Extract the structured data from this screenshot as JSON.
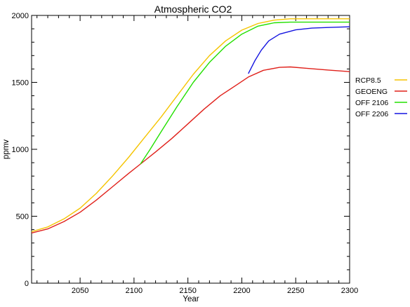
{
  "chart_data": {
    "type": "line",
    "title": "Atmospheric CO2",
    "xlabel": "Year",
    "ylabel": "ppmv",
    "xlim": [
      2005,
      2300
    ],
    "ylim": [
      0,
      2000
    ],
    "x_ticks": [
      2050,
      2100,
      2150,
      2200,
      2250,
      2300
    ],
    "y_ticks": [
      0,
      500,
      1000,
      1500,
      2000
    ],
    "x_tick_labels": [
      "2050",
      "2100",
      "2150",
      "2200",
      "2250",
      "2300"
    ],
    "y_tick_labels": [
      "0",
      "500",
      "1000",
      "1500",
      "2000"
    ],
    "grid": false,
    "legend_position": "right",
    "series": [
      {
        "name": "RCP8.5",
        "color": "#f5c400",
        "points": [
          [
            2005,
            385
          ],
          [
            2020,
            420
          ],
          [
            2035,
            480
          ],
          [
            2050,
            560
          ],
          [
            2065,
            670
          ],
          [
            2080,
            800
          ],
          [
            2095,
            940
          ],
          [
            2110,
            1090
          ],
          [
            2125,
            1240
          ],
          [
            2140,
            1400
          ],
          [
            2155,
            1560
          ],
          [
            2170,
            1700
          ],
          [
            2185,
            1810
          ],
          [
            2200,
            1890
          ],
          [
            2215,
            1940
          ],
          [
            2230,
            1965
          ],
          [
            2245,
            1975
          ],
          [
            2260,
            1975
          ],
          [
            2280,
            1975
          ],
          [
            2300,
            1975
          ]
        ]
      },
      {
        "name": "GEOENG",
        "color": "#e0201a",
        "points": [
          [
            2005,
            375
          ],
          [
            2020,
            405
          ],
          [
            2035,
            460
          ],
          [
            2050,
            530
          ],
          [
            2065,
            620
          ],
          [
            2080,
            720
          ],
          [
            2095,
            820
          ],
          [
            2106,
            890
          ],
          [
            2120,
            980
          ],
          [
            2135,
            1080
          ],
          [
            2150,
            1190
          ],
          [
            2165,
            1300
          ],
          [
            2180,
            1400
          ],
          [
            2195,
            1480
          ],
          [
            2206,
            1540
          ],
          [
            2220,
            1590
          ],
          [
            2235,
            1612
          ],
          [
            2245,
            1615
          ],
          [
            2260,
            1605
          ],
          [
            2280,
            1592
          ],
          [
            2300,
            1580
          ]
        ]
      },
      {
        "name": "OFF 2106",
        "color": "#22e000",
        "points": [
          [
            2106,
            890
          ],
          [
            2115,
            1000
          ],
          [
            2125,
            1130
          ],
          [
            2140,
            1320
          ],
          [
            2155,
            1500
          ],
          [
            2170,
            1650
          ],
          [
            2185,
            1770
          ],
          [
            2200,
            1860
          ],
          [
            2215,
            1920
          ],
          [
            2230,
            1945
          ],
          [
            2245,
            1950
          ],
          [
            2260,
            1950
          ],
          [
            2280,
            1950
          ],
          [
            2300,
            1950
          ]
        ]
      },
      {
        "name": "OFF 2206",
        "color": "#1414e0",
        "points": [
          [
            2206,
            1565
          ],
          [
            2212,
            1660
          ],
          [
            2218,
            1740
          ],
          [
            2225,
            1810
          ],
          [
            2235,
            1860
          ],
          [
            2250,
            1892
          ],
          [
            2265,
            1905
          ],
          [
            2280,
            1910
          ],
          [
            2300,
            1915
          ]
        ]
      }
    ]
  }
}
